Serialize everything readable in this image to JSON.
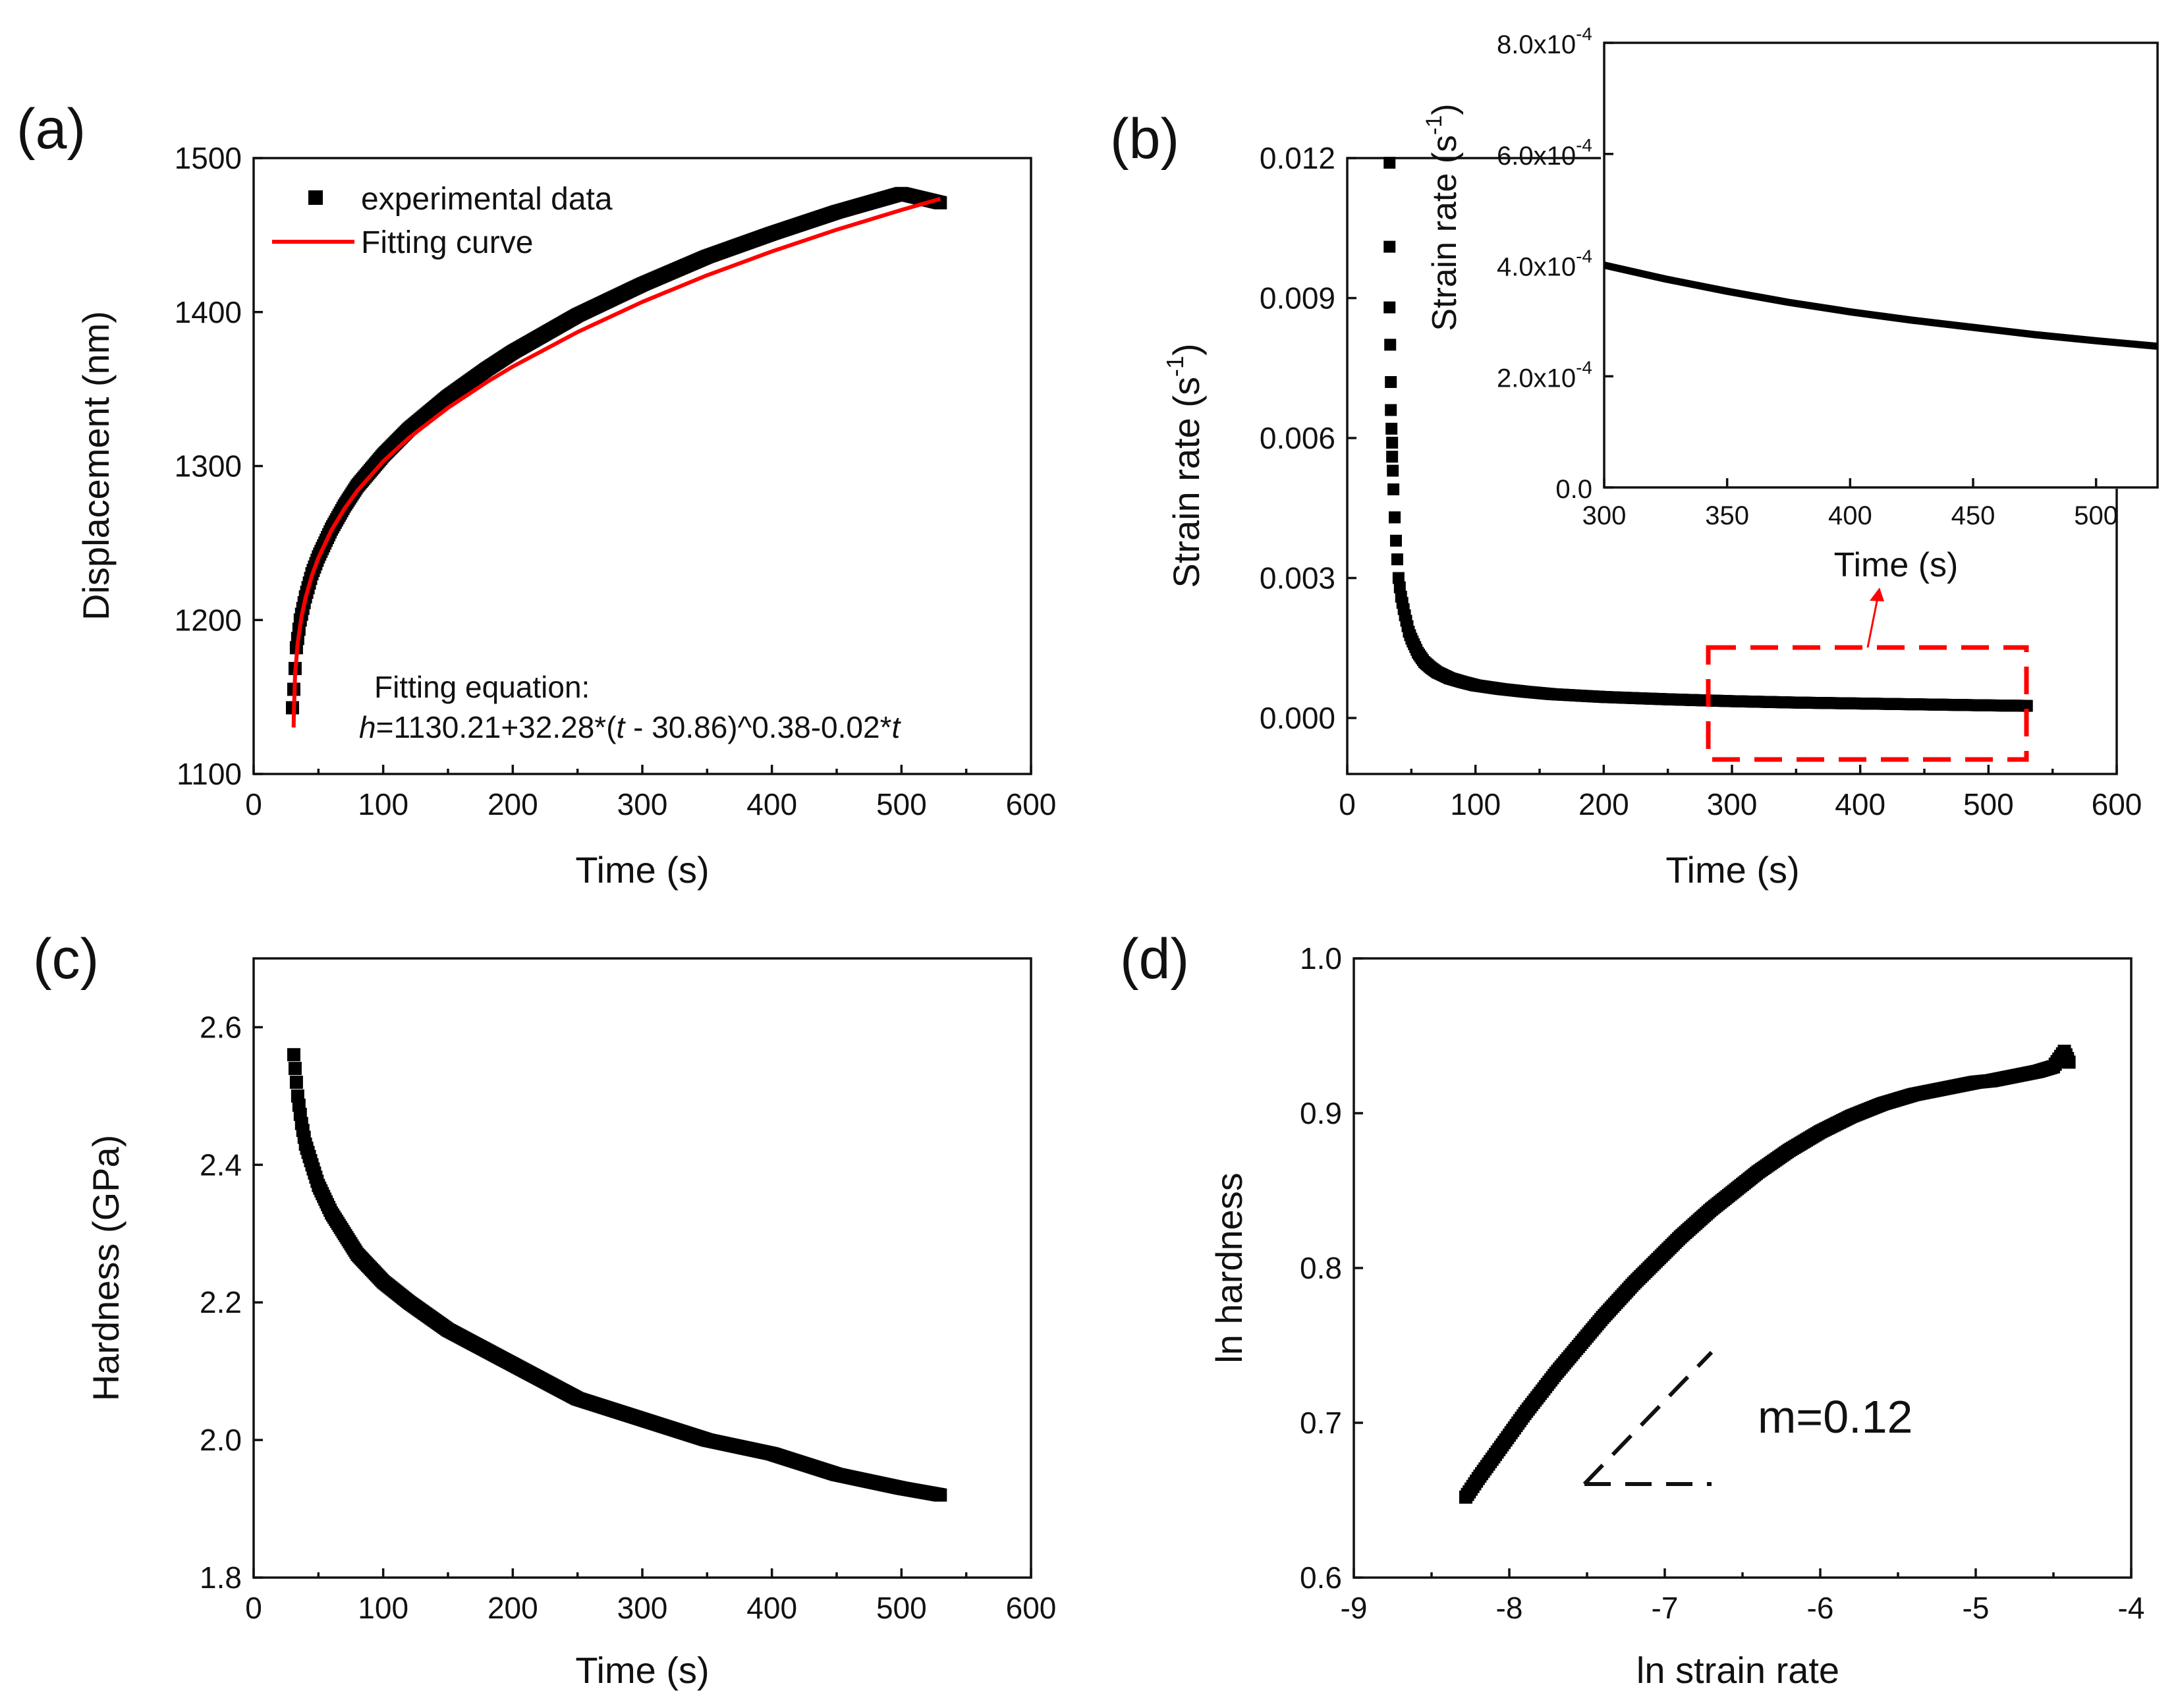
{
  "colors": {
    "markers": "#000000",
    "fit_line": "#ff0000",
    "highlight_box": "#ff0000",
    "axes": "#111111",
    "background": "#ffffff"
  },
  "chart_data": [
    {
      "id": "a",
      "panel_label": "(a)",
      "type": "scatter",
      "xlabel": "Time (s)",
      "ylabel": "Displacement (nm)",
      "xlim": [
        0,
        600
      ],
      "ylim": [
        1100,
        1500
      ],
      "xticks": [
        "0",
        "100",
        "200",
        "300",
        "400",
        "500",
        "600"
      ],
      "yticks": [
        "1100",
        "1200",
        "1300",
        "1400",
        "1500"
      ],
      "legend": {
        "position": "top-left",
        "entries": [
          "experimental data",
          "Fitting curve"
        ]
      },
      "annotation": {
        "line1": "Fitting equation:",
        "eq_h": "h",
        "eq_part1": "=1130.21+32.28*(",
        "eq_t1": "t",
        "eq_part2": " - 30.86)^0.38-0.02*",
        "eq_t2": "t"
      },
      "series": [
        {
          "name": "experimental data",
          "marker": "square",
          "x": [
            30,
            31,
            33,
            36,
            40,
            45,
            50,
            60,
            70,
            80,
            100,
            120,
            150,
            180,
            200,
            250,
            300,
            350,
            400,
            450,
            500,
            530
          ],
          "y": [
            1143,
            1155,
            1182,
            1200,
            1215,
            1230,
            1241,
            1259,
            1274,
            1287,
            1307,
            1324,
            1345,
            1363,
            1374,
            1398,
            1418,
            1436,
            1451,
            1465,
            1477,
            1471
          ]
        },
        {
          "name": "Fitting curve",
          "line": true,
          "x": [
            30.86,
            31,
            32,
            34,
            37,
            40,
            45,
            50,
            60,
            70,
            80,
            100,
            120,
            150,
            180,
            200,
            250,
            300,
            350,
            400,
            450,
            500,
            530
          ],
          "y": [
            1130.2,
            1138.5,
            1164.6,
            1185.2,
            1202.4,
            1214.2,
            1229.0,
            1240.3,
            1258.2,
            1272.2,
            1283.9,
            1303.0,
            1318.4,
            1337.8,
            1354.5,
            1364.6,
            1387.0,
            1406.6,
            1423.9,
            1439.4,
            1453.5,
            1466.3,
            1473.5
          ]
        }
      ]
    },
    {
      "id": "b",
      "panel_label": "(b)",
      "type": "scatter",
      "xlabel": "Time (s)",
      "ylabel_base": "Strain rate (s",
      "ylabel_sup": "-1",
      "ylabel_end": ")",
      "xlim": [
        0,
        600
      ],
      "ylim": [
        -0.0012,
        0.012
      ],
      "xticks": [
        "0",
        "100",
        "200",
        "300",
        "400",
        "500",
        "600"
      ],
      "yticks": [
        "0.000",
        "0.003",
        "0.006",
        "0.009",
        "0.012"
      ],
      "series": [
        {
          "name": "strain rate",
          "marker": "square",
          "x": [
            33,
            33,
            33,
            33.5,
            34,
            34,
            34.5,
            35,
            35,
            35.5,
            36,
            37,
            38,
            39,
            40,
            42,
            45,
            48,
            50,
            55,
            60,
            65,
            70,
            80,
            90,
            100,
            120,
            140,
            160,
            180,
            200,
            250,
            300,
            350,
            400,
            450,
            500,
            530
          ],
          "y": [
            0.0119,
            0.0101,
            0.0088,
            0.008,
            0.0072,
            0.0066,
            0.0062,
            0.0059,
            0.0056,
            0.0053,
            0.0049,
            0.0043,
            0.0038,
            0.0034,
            0.003,
            0.0026,
            0.0022,
            0.00185,
            0.0017,
            0.0014,
            0.0012,
            0.00108,
            0.00098,
            0.00085,
            0.00077,
            0.0007,
            0.00062,
            0.00056,
            0.00051,
            0.00048,
            0.00045,
            0.0004,
            0.00036,
            0.00033,
            0.00031,
            0.00029,
            0.00027,
            0.00026
          ]
        }
      ]
    },
    {
      "id": "b-inset",
      "type": "line",
      "xlabel": "Time (s)",
      "ylabel_base": "Strain rate (s",
      "ylabel_sup": "-1",
      "ylabel_end": ")",
      "xlim": [
        300,
        525
      ],
      "ylim": [
        0,
        0.0008
      ],
      "xticks": [
        "300",
        "350",
        "400",
        "450",
        "500"
      ],
      "yticks": [
        {
          "base": "0.0",
          "exp": ""
        },
        {
          "base": "2.0x10",
          "exp": "-4"
        },
        {
          "base": "4.0x10",
          "exp": "-4"
        },
        {
          "base": "6.0x10",
          "exp": "-4"
        },
        {
          "base": "8.0x10",
          "exp": "-4"
        }
      ],
      "series": [
        {
          "name": "strain rate (zoom)",
          "x": [
            300,
            325,
            350,
            375,
            400,
            425,
            450,
            475,
            500,
            525
          ],
          "y": [
            0.0004,
            0.000375,
            0.000353,
            0.000333,
            0.000316,
            0.000301,
            0.000288,
            0.000275,
            0.000264,
            0.000254
          ]
        }
      ]
    },
    {
      "id": "c",
      "panel_label": "(c)",
      "type": "scatter",
      "xlabel": "Time (s)",
      "ylabel": "Hardness (GPa)",
      "xlim": [
        0,
        600
      ],
      "ylim": [
        1.8,
        2.7
      ],
      "xticks": [
        "0",
        "100",
        "200",
        "300",
        "400",
        "500",
        "600"
      ],
      "yticks": [
        "1.8",
        "2.0",
        "2.2",
        "2.4",
        "2.6"
      ],
      "series": [
        {
          "name": "hardness",
          "marker": "square",
          "x": [
            31,
            32,
            34,
            37,
            40,
            45,
            50,
            60,
            70,
            80,
            100,
            120,
            150,
            200,
            250,
            300,
            350,
            400,
            450,
            500,
            530
          ],
          "y": [
            2.56,
            2.54,
            2.5,
            2.46,
            2.43,
            2.4,
            2.37,
            2.33,
            2.3,
            2.27,
            2.23,
            2.2,
            2.16,
            2.11,
            2.06,
            2.03,
            2.0,
            1.98,
            1.95,
            1.93,
            1.92
          ]
        }
      ]
    },
    {
      "id": "d",
      "panel_label": "(d)",
      "type": "scatter",
      "xlabel": "ln strain rate",
      "ylabel": "ln hardness",
      "xlim": [
        -9,
        -4
      ],
      "ylim": [
        0.6,
        1.0
      ],
      "xticks": [
        "-9",
        "-8",
        "-7",
        "-6",
        "-5",
        "-4"
      ],
      "yticks": [
        "0.6",
        "0.7",
        "0.8",
        "0.9",
        "1.0"
      ],
      "slope_label": "m=0.12",
      "series": [
        {
          "name": "ln hardness vs ln strain rate",
          "marker": "square",
          "x": [
            -8.28,
            -8.2,
            -8.1,
            -8.0,
            -7.9,
            -7.8,
            -7.7,
            -7.6,
            -7.5,
            -7.4,
            -7.3,
            -7.2,
            -7.1,
            -7.0,
            -6.9,
            -6.8,
            -6.7,
            -6.6,
            -6.5,
            -6.4,
            -6.3,
            -6.2,
            -6.1,
            -6.0,
            -5.9,
            -5.8,
            -5.7,
            -5.6,
            -5.5,
            -5.4,
            -5.3,
            -5.2,
            -5.1,
            -5.0,
            -4.9,
            -4.8,
            -4.7,
            -4.6,
            -4.5,
            -4.43,
            -4.4
          ],
          "y": [
            0.652,
            0.664,
            0.678,
            0.692,
            0.706,
            0.719,
            0.732,
            0.744,
            0.756,
            0.768,
            0.779,
            0.79,
            0.8,
            0.81,
            0.82,
            0.829,
            0.838,
            0.846,
            0.854,
            0.862,
            0.869,
            0.876,
            0.882,
            0.888,
            0.893,
            0.898,
            0.902,
            0.906,
            0.909,
            0.912,
            0.914,
            0.916,
            0.918,
            0.92,
            0.921,
            0.923,
            0.925,
            0.927,
            0.93,
            0.94,
            0.933
          ]
        }
      ]
    }
  ]
}
